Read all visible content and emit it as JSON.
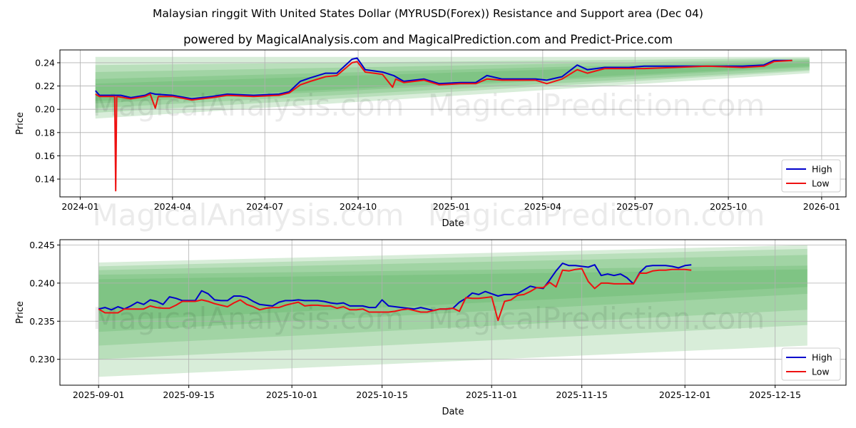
{
  "title": "Malaysian ringgit With United States Dollar (MYRUSD(Forex)) Resistance and Support area (Dec 04)",
  "subtitle": "powered by MagicalAnalysis.com and MagicalPrediction.com and Predict-Price.com",
  "watermarks": [
    "MagicalAnalysis.com",
    "MagicalPrediction.com"
  ],
  "colors": {
    "high": "#0000cc",
    "low": "#ee1111",
    "band": "#4caf50"
  },
  "chart_data": [
    {
      "type": "line",
      "xlabel": "Date",
      "ylabel": "Price",
      "xlim": [
        "2023-12-12",
        "2026-01-25"
      ],
      "ylim": [
        0.1247,
        0.251
      ],
      "yticks": [
        0.14,
        0.16,
        0.18,
        0.2,
        0.22,
        0.24
      ],
      "ytick_labels": [
        "0.14",
        "0.16",
        "0.18",
        "0.20",
        "0.22",
        "0.24"
      ],
      "xticks": [
        "2024-01-01",
        "2024-04-01",
        "2024-07-01",
        "2024-10-01",
        "2025-01-01",
        "2025-04-01",
        "2025-07-01",
        "2025-10-01",
        "2026-01-01"
      ],
      "xtick_labels": [
        "2024-01",
        "2024-04",
        "2024-07",
        "2024-10",
        "2025-01",
        "2025-04",
        "2025-07",
        "2025-10",
        "2026-01"
      ],
      "grid": true,
      "legend": {
        "position": "bottom-right",
        "entries": [
          "High",
          "Low"
        ]
      },
      "bands": {
        "x": [
          "2024-01-16",
          "2025-12-20"
        ],
        "ranges": [
          [
            0.192,
            0.245,
            0.231,
            0.245
          ],
          [
            0.197,
            0.238,
            0.233,
            0.244
          ],
          [
            0.201,
            0.232,
            0.234,
            0.243
          ],
          [
            0.205,
            0.226,
            0.236,
            0.242
          ],
          [
            0.207,
            0.222,
            0.237,
            0.241
          ]
        ]
      },
      "series": [
        {
          "name": "High",
          "points": [
            [
              "2024-01-16",
              0.216
            ],
            [
              "2024-01-20",
              0.212
            ],
            [
              "2024-02-04",
              0.212
            ],
            [
              "2024-02-10",
              0.212
            ],
            [
              "2024-02-20",
              0.21
            ],
            [
              "2024-03-05",
              0.212
            ],
            [
              "2024-03-10",
              0.214
            ],
            [
              "2024-03-15",
              0.213
            ],
            [
              "2024-04-01",
              0.212
            ],
            [
              "2024-04-20",
              0.209
            ],
            [
              "2024-05-10",
              0.211
            ],
            [
              "2024-05-25",
              0.213
            ],
            [
              "2024-06-20",
              0.212
            ],
            [
              "2024-07-15",
              0.213
            ],
            [
              "2024-07-25",
              0.215
            ],
            [
              "2024-08-05",
              0.224
            ],
            [
              "2024-08-15",
              0.227
            ],
            [
              "2024-08-30",
              0.231
            ],
            [
              "2024-09-10",
              0.231
            ],
            [
              "2024-09-25",
              0.243
            ],
            [
              "2024-09-30",
              0.244
            ],
            [
              "2024-10-08",
              0.234
            ],
            [
              "2024-10-25",
              0.232
            ],
            [
              "2024-11-05",
              0.229
            ],
            [
              "2024-11-15",
              0.224
            ],
            [
              "2024-12-05",
              0.226
            ],
            [
              "2024-12-20",
              0.222
            ],
            [
              "2025-01-10",
              0.223
            ],
            [
              "2025-01-25",
              0.223
            ],
            [
              "2025-02-05",
              0.229
            ],
            [
              "2025-02-20",
              0.226
            ],
            [
              "2025-03-10",
              0.226
            ],
            [
              "2025-03-25",
              0.226
            ],
            [
              "2025-04-05",
              0.225
            ],
            [
              "2025-04-20",
              0.228
            ],
            [
              "2025-05-05",
              0.238
            ],
            [
              "2025-05-15",
              0.234
            ],
            [
              "2025-06-01",
              0.236
            ],
            [
              "2025-06-25",
              0.236
            ],
            [
              "2025-07-10",
              0.237
            ],
            [
              "2025-08-10",
              0.237
            ],
            [
              "2025-09-10",
              0.237
            ],
            [
              "2025-10-15",
              0.237
            ],
            [
              "2025-11-05",
              0.238
            ],
            [
              "2025-11-15",
              0.242
            ],
            [
              "2025-12-03",
              0.242
            ]
          ]
        },
        {
          "name": "Low",
          "points": [
            [
              "2024-01-16",
              0.213
            ],
            [
              "2024-01-20",
              0.211
            ],
            [
              "2024-02-04",
              0.211
            ],
            [
              "2024-02-05",
              0.13
            ],
            [
              "2024-02-06",
              0.211
            ],
            [
              "2024-02-20",
              0.209
            ],
            [
              "2024-03-05",
              0.211
            ],
            [
              "2024-03-10",
              0.213
            ],
            [
              "2024-03-15",
              0.201
            ],
            [
              "2024-03-18",
              0.211
            ],
            [
              "2024-04-01",
              0.211
            ],
            [
              "2024-04-20",
              0.208
            ],
            [
              "2024-05-10",
              0.21
            ],
            [
              "2024-05-25",
              0.212
            ],
            [
              "2024-06-20",
              0.211
            ],
            [
              "2024-07-15",
              0.212
            ],
            [
              "2024-07-25",
              0.214
            ],
            [
              "2024-08-05",
              0.221
            ],
            [
              "2024-08-15",
              0.224
            ],
            [
              "2024-08-30",
              0.228
            ],
            [
              "2024-09-10",
              0.229
            ],
            [
              "2024-09-25",
              0.24
            ],
            [
              "2024-09-30",
              0.241
            ],
            [
              "2024-10-08",
              0.232
            ],
            [
              "2024-10-25",
              0.23
            ],
            [
              "2024-11-04",
              0.219
            ],
            [
              "2024-11-07",
              0.226
            ],
            [
              "2024-11-15",
              0.223
            ],
            [
              "2024-12-05",
              0.225
            ],
            [
              "2024-12-20",
              0.221
            ],
            [
              "2025-01-10",
              0.222
            ],
            [
              "2025-01-25",
              0.222
            ],
            [
              "2025-02-05",
              0.226
            ],
            [
              "2025-02-20",
              0.225
            ],
            [
              "2025-03-10",
              0.225
            ],
            [
              "2025-03-25",
              0.225
            ],
            [
              "2025-04-05",
              0.222
            ],
            [
              "2025-04-20",
              0.226
            ],
            [
              "2025-05-05",
              0.234
            ],
            [
              "2025-05-15",
              0.231
            ],
            [
              "2025-06-01",
              0.235
            ],
            [
              "2025-06-25",
              0.235
            ],
            [
              "2025-07-10",
              0.235
            ],
            [
              "2025-08-10",
              0.236
            ],
            [
              "2025-09-10",
              0.237
            ],
            [
              "2025-10-15",
              0.236
            ],
            [
              "2025-11-05",
              0.237
            ],
            [
              "2025-11-15",
              0.241
            ],
            [
              "2025-12-03",
              0.242
            ]
          ]
        }
      ]
    },
    {
      "type": "line",
      "xlabel": "Date",
      "ylabel": "Price",
      "xlim": [
        "2025-08-26",
        "2025-12-26"
      ],
      "ylim": [
        0.2266,
        0.2457
      ],
      "yticks": [
        0.23,
        0.235,
        0.24,
        0.245
      ],
      "ytick_labels": [
        "0.230",
        "0.235",
        "0.240",
        "0.245"
      ],
      "xticks": [
        "2025-09-01",
        "2025-09-15",
        "2025-10-01",
        "2025-10-15",
        "2025-11-01",
        "2025-11-15",
        "2025-12-01",
        "2025-12-15"
      ],
      "xtick_labels": [
        "2025-09-01",
        "2025-09-15",
        "2025-10-01",
        "2025-10-15",
        "2025-11-01",
        "2025-11-15",
        "2025-12-01",
        "2025-12-15"
      ],
      "grid": true,
      "legend": {
        "position": "bottom-right",
        "entries": [
          "High",
          "Low"
        ]
      },
      "bands": {
        "x": [
          "2025-09-01",
          "2025-12-20"
        ],
        "ranges": [
          [
            0.2277,
            0.2427,
            0.2318,
            0.245
          ],
          [
            0.23,
            0.2422,
            0.2345,
            0.2445
          ],
          [
            0.2318,
            0.2417,
            0.2365,
            0.2437
          ],
          [
            0.2336,
            0.2411,
            0.2386,
            0.2423
          ],
          [
            0.235,
            0.2405,
            0.2395,
            0.2418
          ]
        ]
      },
      "daily_start": "2025-09-01",
      "series": [
        {
          "name": "High",
          "values": [
            0.2366,
            0.2368,
            0.2365,
            0.2369,
            0.2366,
            0.237,
            0.2375,
            0.2372,
            0.2378,
            0.2376,
            0.2372,
            0.2382,
            0.238,
            0.2377,
            0.2377,
            0.2377,
            0.239,
            0.2386,
            0.2378,
            0.2377,
            0.2377,
            0.2383,
            0.2383,
            0.2381,
            0.2376,
            0.2372,
            0.2371,
            0.237,
            0.2375,
            0.2377,
            0.2377,
            0.2378,
            0.2377,
            0.2377,
            0.2377,
            0.2376,
            0.2374,
            0.2373,
            0.2374,
            0.237,
            0.237,
            0.237,
            0.2368,
            0.2368,
            0.2378,
            0.237,
            0.2369,
            0.2368,
            0.2367,
            0.2366,
            0.2368,
            0.2366,
            0.2364,
            0.2366,
            0.2366,
            0.2367,
            0.2375,
            0.238,
            0.2387,
            0.2385,
            0.2389,
            0.2386,
            0.2383,
            0.2385,
            0.2385,
            0.2386,
            0.2391,
            0.2396,
            0.2394,
            0.2393,
            0.2404,
            0.2416,
            0.2426,
            0.2423,
            0.2423,
            0.2422,
            0.2421,
            0.2424,
            0.241,
            0.2412,
            0.241,
            0.2412,
            0.2407,
            0.2399,
            0.2414,
            0.2422,
            0.2423,
            0.2423,
            0.2423,
            0.2422,
            0.242,
            0.2423,
            0.2424
          ]
        },
        {
          "name": "Low",
          "values": [
            0.2366,
            0.2361,
            0.2361,
            0.2361,
            0.2366,
            0.2366,
            0.2366,
            0.2366,
            0.237,
            0.2368,
            0.2367,
            0.2367,
            0.2371,
            0.2376,
            0.2376,
            0.2376,
            0.2378,
            0.2376,
            0.2373,
            0.2371,
            0.2369,
            0.2374,
            0.2378,
            0.2372,
            0.2369,
            0.2365,
            0.2367,
            0.2368,
            0.2368,
            0.2371,
            0.2373,
            0.2375,
            0.237,
            0.2371,
            0.2371,
            0.237,
            0.237,
            0.2367,
            0.2369,
            0.2365,
            0.2365,
            0.2366,
            0.2362,
            0.2362,
            0.2362,
            0.2362,
            0.2363,
            0.2365,
            0.2366,
            0.2364,
            0.2362,
            0.2362,
            0.2364,
            0.2366,
            0.2366,
            0.2367,
            0.2363,
            0.2381,
            0.238,
            0.238,
            0.2381,
            0.2382,
            0.2351,
            0.2376,
            0.2378,
            0.2384,
            0.2385,
            0.2389,
            0.2394,
            0.2394,
            0.2401,
            0.2395,
            0.2417,
            0.2416,
            0.2418,
            0.2419,
            0.2402,
            0.2393,
            0.24,
            0.24,
            0.2399,
            0.2399,
            0.2399,
            0.2399,
            0.2413,
            0.2413,
            0.2416,
            0.2417,
            0.2417,
            0.2418,
            0.2418,
            0.2418,
            0.2417
          ]
        }
      ]
    }
  ]
}
